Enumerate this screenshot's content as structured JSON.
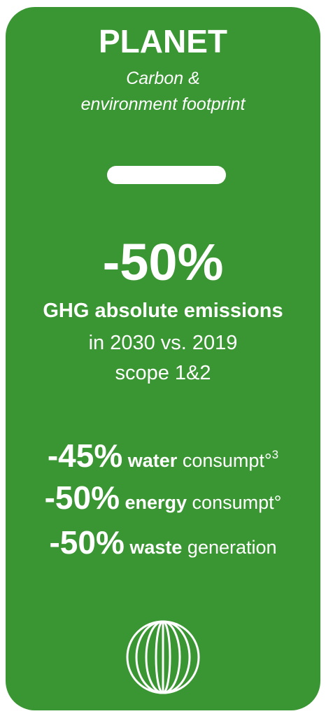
{
  "card": {
    "title": "PLANET",
    "subtitle_lines": [
      "Carbon &",
      "environment footprint"
    ],
    "headline": {
      "value": "-50%",
      "metric": "GHG absolute emissions",
      "detail_lines": [
        "in 2030 vs. 2019",
        "scope 1&2"
      ]
    },
    "targets": [
      {
        "value": "-45%",
        "keyword": "water",
        "rest": "consumpt°",
        "note": "3"
      },
      {
        "value": "-50%",
        "keyword": "energy",
        "rest": "consumpt°"
      },
      {
        "value": "-50%",
        "keyword": "waste",
        "rest": "generation"
      }
    ]
  }
}
